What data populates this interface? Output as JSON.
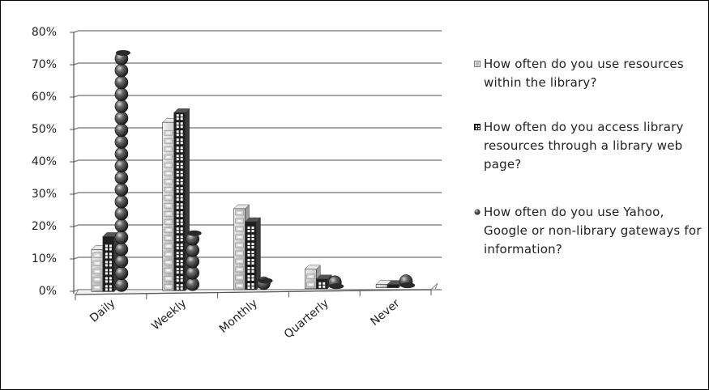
{
  "chart_data": {
    "type": "bar",
    "variant": "3d-clustered-column",
    "categories": [
      "Daily",
      "Weekly",
      "Monthly",
      "Quarterly",
      "Never"
    ],
    "series": [
      {
        "name": "How often do you use resources within the library?",
        "values": [
          13,
          52,
          25,
          6,
          1
        ],
        "style": "checker-cube",
        "color": "#cfcfcf"
      },
      {
        "name": "How often do you access library resources through a library web page?",
        "values": [
          17,
          55,
          21,
          3,
          1
        ],
        "style": "grid-cube",
        "color": "#1a1a1a"
      },
      {
        "name": "How often do you use Yahoo, Google or non-library gateways for information?",
        "values": [
          74,
          18,
          3,
          1,
          1
        ],
        "style": "sphere",
        "color": "#3a3a3a"
      }
    ],
    "yticks": [
      "0%",
      "10%",
      "20%",
      "30%",
      "40%",
      "50%",
      "60%",
      "70%",
      "80%"
    ],
    "ylim": [
      0,
      80
    ],
    "grid": true,
    "legend_position": "right"
  }
}
